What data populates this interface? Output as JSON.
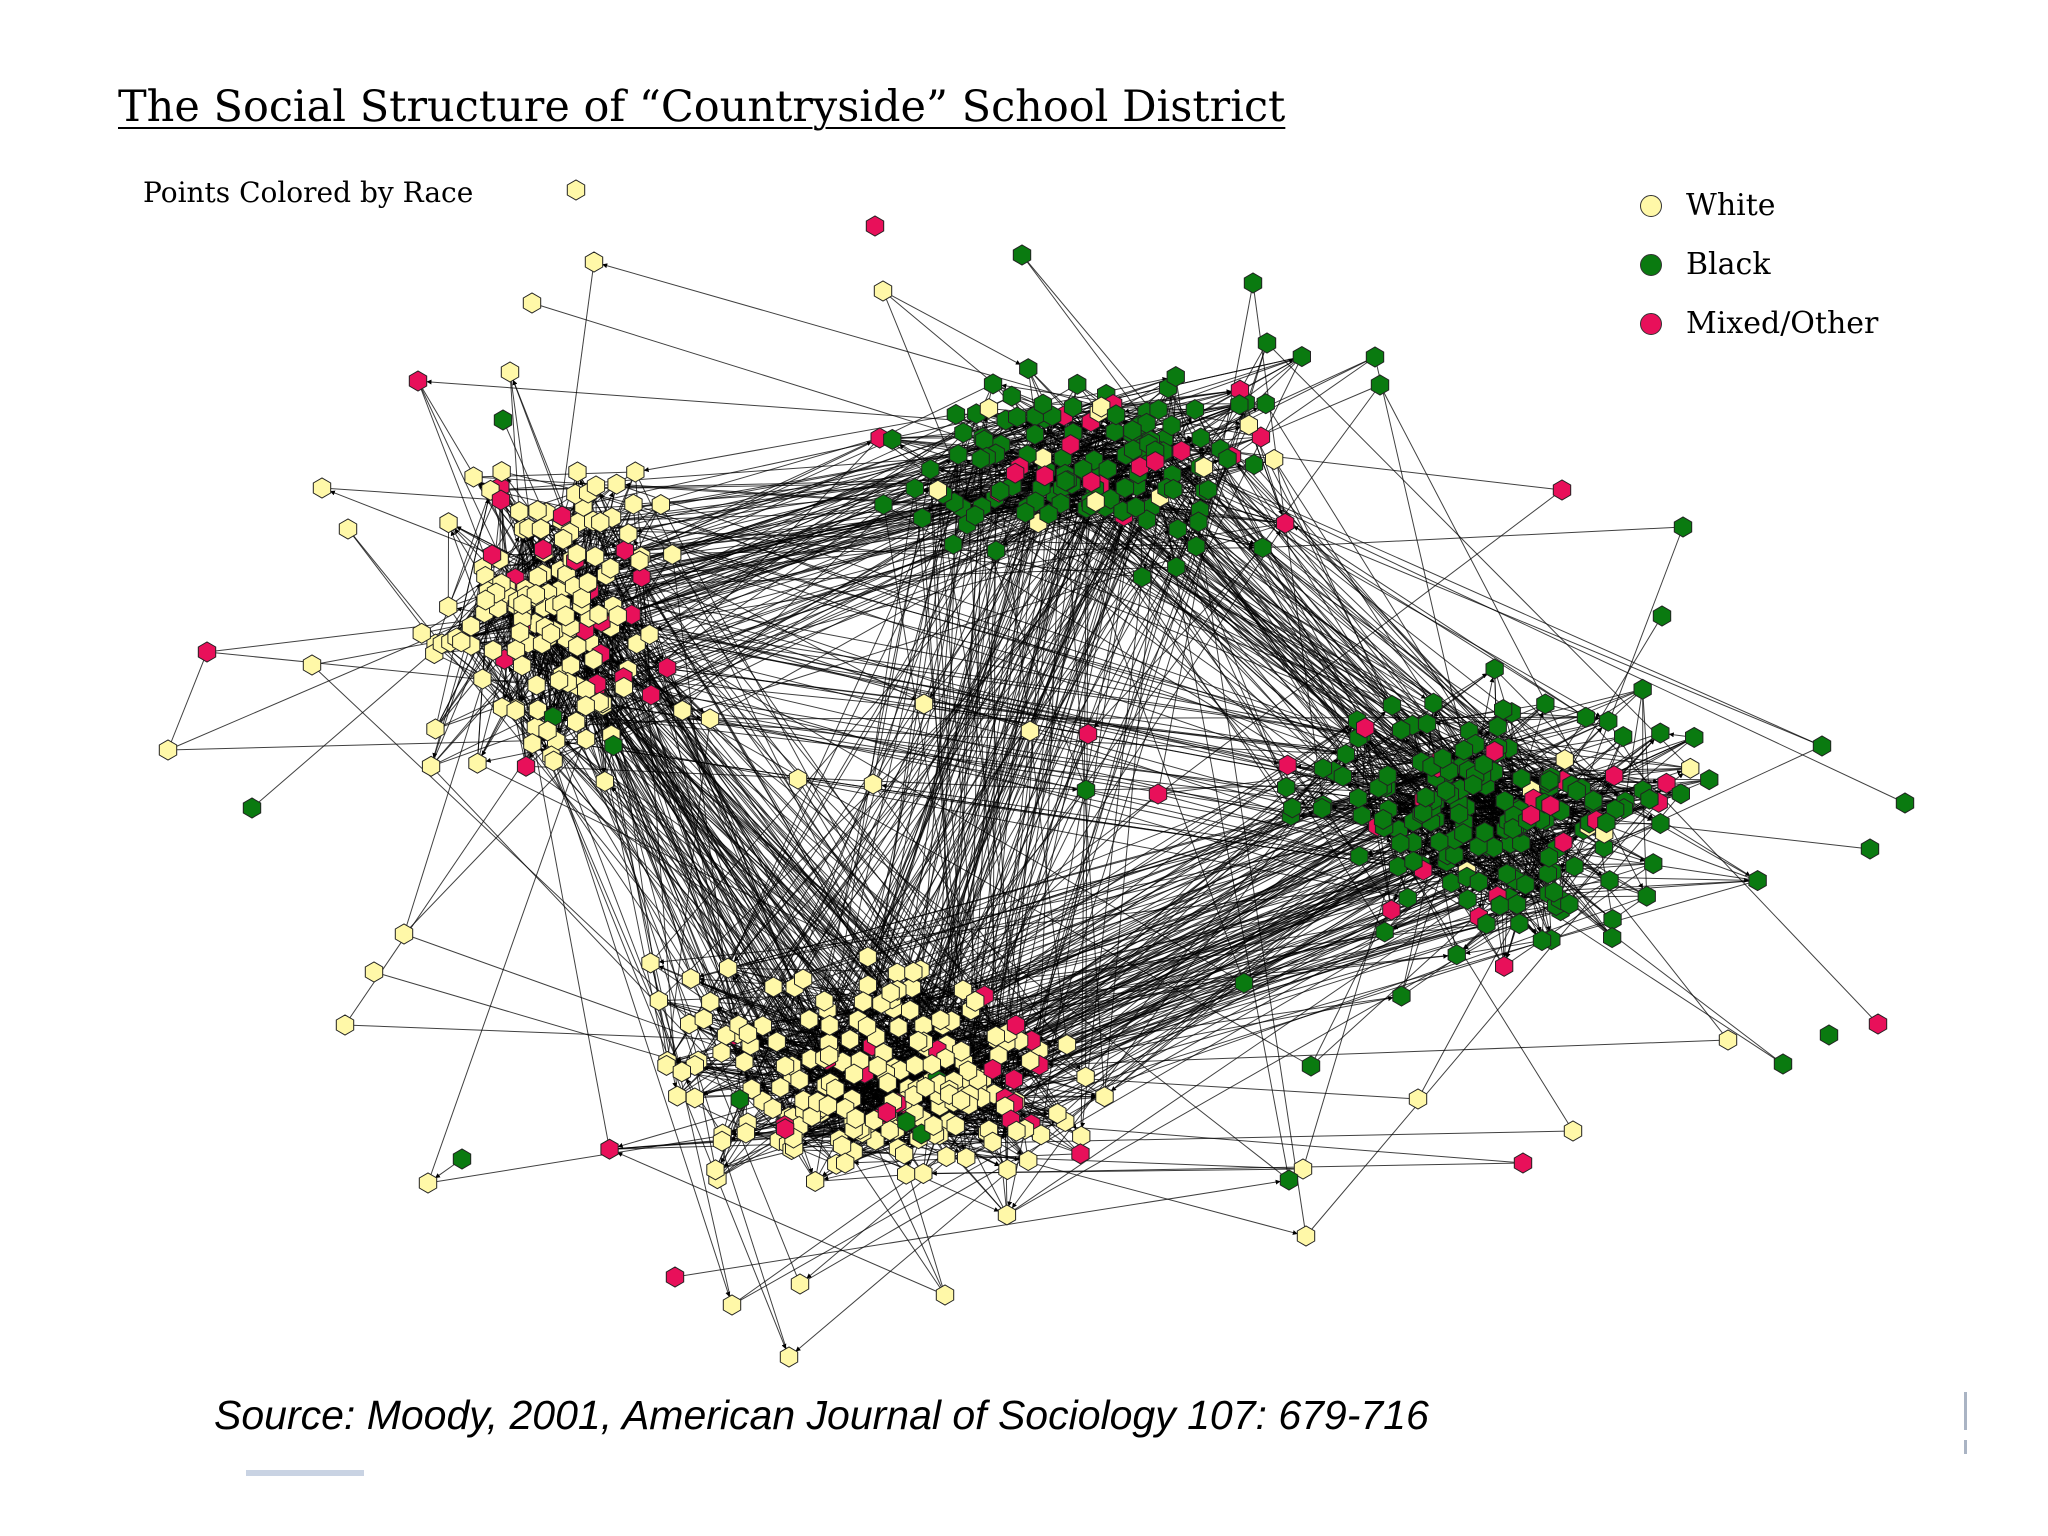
{
  "title": "The Social Structure of “Countryside” School District",
  "subtitle": "Points Colored by Race",
  "legend": [
    {
      "label": "White",
      "color": "#fff8a8"
    },
    {
      "label": "Black",
      "color": "#0a7a10"
    },
    {
      "label": "Mixed/Other",
      "color": "#e8105a"
    }
  ],
  "source": "Source: Moody, 2001, American Journal of Sociology 107: 679-716",
  "colors": {
    "white_node": "#fff8a8",
    "black_node": "#0a7a10",
    "mixed_node": "#e8105a",
    "edge": "#000000"
  }
}
